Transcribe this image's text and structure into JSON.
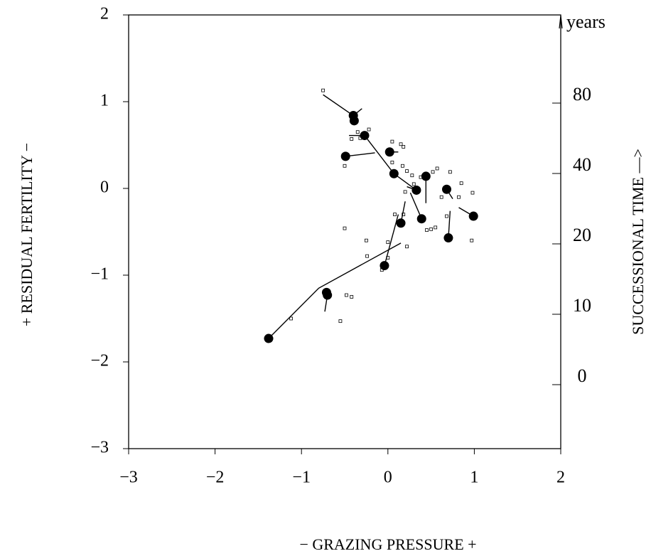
{
  "chart_data": {
    "type": "scatter",
    "xlabel": "− GRAZING PRESSURE +",
    "ylabel": "+ RESIDUAL FERTILITY −",
    "y2label": "SUCCESSIONAL TIME —>",
    "y2unit": "years",
    "xlim": [
      -3,
      2
    ],
    "ylim": [
      -3,
      2
    ],
    "xticks": [
      {
        "value": -3,
        "label": "−3"
      },
      {
        "value": -2,
        "label": "−2"
      },
      {
        "value": -1,
        "label": "−1"
      },
      0,
      1,
      2
    ],
    "yticks": [
      {
        "value": -3,
        "label": "−3"
      },
      {
        "value": -2,
        "label": "−2"
      },
      {
        "value": -1,
        "label": "−1"
      },
      0,
      1,
      2
    ],
    "y2scale": "ordinal",
    "y2ticks": [
      0,
      10,
      20,
      40,
      80
    ],
    "color": "#000000",
    "means": {
      "x": [
        -0.4,
        -0.39,
        -0.27,
        -0.49,
        0.02,
        0.07,
        0.44,
        0.33,
        0.68,
        0.99,
        0.39,
        0.15,
        0.7,
        -0.04,
        -0.71,
        -0.7,
        -1.38
      ],
      "y": [
        0.84,
        0.78,
        0.61,
        0.37,
        0.42,
        0.17,
        0.14,
        -0.02,
        -0.01,
        -0.32,
        -0.35,
        -0.4,
        -0.57,
        -0.89,
        -1.2,
        -1.23,
        -1.73
      ]
    },
    "segments": [
      {
        "x": [
          -0.75,
          -0.4
        ],
        "y": [
          1.08,
          0.84
        ]
      },
      {
        "x": [
          -0.4,
          -0.3
        ],
        "y": [
          0.84,
          0.92
        ]
      },
      {
        "x": [
          -0.45,
          -0.27
        ],
        "y": [
          0.61,
          0.61
        ]
      },
      {
        "x": [
          -0.27,
          0.07,
          0.33
        ],
        "y": [
          0.61,
          0.17,
          -0.02
        ]
      },
      {
        "x": [
          -0.49,
          -0.15
        ],
        "y": [
          0.37,
          0.41
        ]
      },
      {
        "x": [
          0.02,
          0.12
        ],
        "y": [
          0.42,
          0.42
        ]
      },
      {
        "x": [
          0.44,
          0.44
        ],
        "y": [
          0.14,
          -0.17
        ]
      },
      {
        "x": [
          0.22,
          0.33
        ],
        "y": [
          0.02,
          -0.02
        ]
      },
      {
        "x": [
          0.68,
          0.75
        ],
        "y": [
          -0.01,
          -0.12
        ]
      },
      {
        "x": [
          0.82,
          0.99
        ],
        "y": [
          -0.22,
          -0.32
        ]
      },
      {
        "x": [
          0.26,
          0.39
        ],
        "y": [
          -0.05,
          -0.35
        ]
      },
      {
        "x": [
          0.2,
          0.15
        ],
        "y": [
          -0.15,
          -0.4
        ]
      },
      {
        "x": [
          0.72,
          0.7
        ],
        "y": [
          -0.26,
          -0.57
        ]
      },
      {
        "x": [
          0.12,
          -0.04
        ],
        "y": [
          -0.3,
          -0.89
        ]
      },
      {
        "x": [
          -1.38,
          -0.8,
          0.15
        ],
        "y": [
          -1.73,
          -1.15,
          -0.63
        ]
      },
      {
        "x": [
          -0.7,
          -0.73
        ],
        "y": [
          -1.23,
          -1.42
        ]
      }
    ],
    "plots": {
      "x": [
        -0.75,
        -0.35,
        -0.32,
        -0.42,
        -0.22,
        -0.5,
        0.05,
        0.15,
        0.18,
        0.05,
        0.17,
        0.22,
        0.28,
        0.38,
        0.52,
        0.57,
        0.72,
        0.85,
        0.98,
        0.3,
        0.2,
        0.62,
        0.82,
        0.08,
        0.18,
        0.5,
        0.45,
        0.55,
        0.68,
        0.97,
        -0.5,
        -0.25,
        -0.24,
        -0.07,
        0.0,
        0.0,
        -0.48,
        -0.42,
        -0.55,
        -1.12,
        0.22
      ],
      "y": [
        1.13,
        0.65,
        0.58,
        0.57,
        0.68,
        0.26,
        0.54,
        0.51,
        0.48,
        0.3,
        0.26,
        0.2,
        0.15,
        0.13,
        0.19,
        0.23,
        0.19,
        0.06,
        -0.05,
        0.05,
        -0.04,
        -0.1,
        -0.1,
        -0.3,
        -0.3,
        -0.47,
        -0.48,
        -0.45,
        -0.32,
        -0.6,
        -0.46,
        -0.6,
        -0.78,
        -0.94,
        -0.62,
        -0.8,
        -1.23,
        -1.25,
        -1.53,
        -1.5,
        -0.67
      ]
    }
  }
}
